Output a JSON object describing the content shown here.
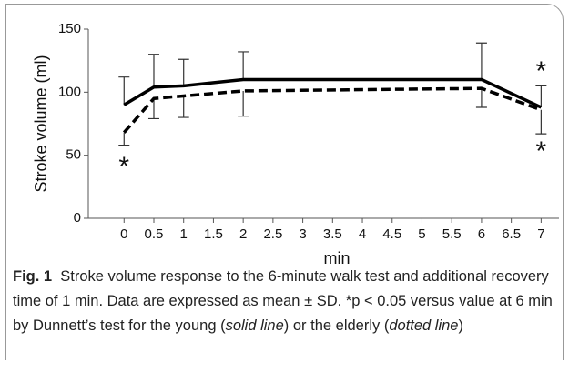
{
  "chart_data": {
    "type": "line",
    "ylabel": "Stroke volume (ml)",
    "xlabel": "min",
    "x": [
      0,
      0.5,
      1,
      2,
      6,
      7
    ],
    "series": [
      {
        "color": "#000000",
        "dash": false,
        "values": [
          90,
          104,
          105,
          110,
          110,
          88
        ],
        "error": [
          22,
          26,
          21,
          22,
          29,
          17
        ],
        "error_side": "upper"
      },
      {
        "color": "#000000",
        "dash": true,
        "values": [
          68,
          95,
          97,
          101,
          103,
          86
        ],
        "error": [
          10,
          16,
          17,
          20,
          15,
          19
        ],
        "error_side": "lower"
      }
    ],
    "xlim": [
      -0.6,
      7.3
    ],
    "xticks": [
      0,
      0.5,
      1,
      1.5,
      2,
      2.5,
      3,
      3.5,
      4,
      4.5,
      5,
      5.5,
      6,
      6.5,
      7
    ],
    "ylim": [
      0,
      150
    ],
    "yticks": [
      0,
      50,
      100,
      150
    ],
    "annotations": [
      "*",
      "*",
      "*"
    ]
  },
  "caption": {
    "label": "Fig. 1",
    "text1": "Stroke volume response to the 6-minute walk test and additional recovery time of 1 min. Data are expressed as mean ± SD. *p < 0.05 versus value at 6 min by Dunnett’s test for the young (",
    "italic1": "solid line",
    "text2": ") or the elderly (",
    "italic2": "dotted line",
    "text3": ")"
  }
}
